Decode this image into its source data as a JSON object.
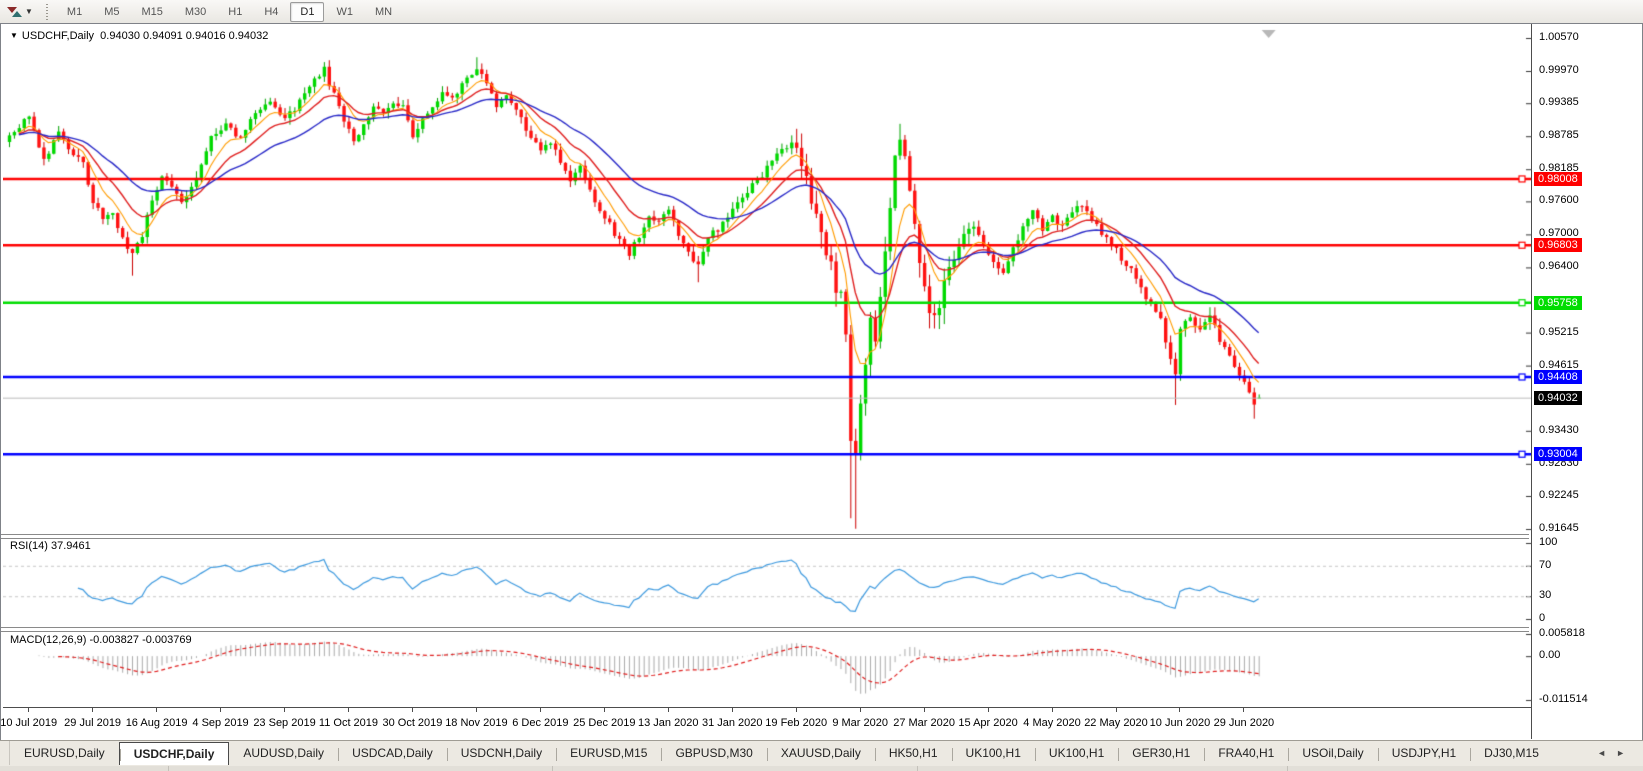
{
  "toolbar": {
    "timeframes": [
      "M1",
      "M5",
      "M15",
      "M30",
      "H1",
      "H4",
      "D1",
      "W1",
      "MN"
    ],
    "active_timeframe": "D1"
  },
  "chart_data": [
    {
      "type": "candlestick",
      "symbol": "USDCHF",
      "timeframe": "Daily",
      "title_symbol": "USDCHF,Daily",
      "title_ohlc": "0.94030 0.94091 0.94016 0.94032",
      "quote": {
        "open": 0.9403,
        "high": 0.94091,
        "low": 0.94016,
        "close": 0.94032
      },
      "collapse_arrow": "▼",
      "num_candles": 255,
      "x_labels": [
        "10 Jul 2019",
        "29 Jul 2019",
        "16 Aug 2019",
        "4 Sep 2019",
        "23 Sep 2019",
        "11 Oct 2019",
        "30 Oct 2019",
        "18 Nov 2019",
        "6 Dec 2019",
        "25 Dec 2019",
        "13 Jan 2020",
        "31 Jan 2020",
        "19 Feb 2020",
        "9 Mar 2020",
        "27 Mar 2020",
        "15 Apr 2020",
        "4 May 2020",
        "22 May 2020",
        "10 Jun 2020",
        "29 Jun 2020"
      ],
      "x_label_first_index": 4,
      "x_label_step": 13,
      "y_range": [
        0.91645,
        1.0057
      ],
      "y_ticks": [
        {
          "label": "1.00570",
          "value": 1.0057
        },
        {
          "label": "0.99970",
          "value": 0.9997
        },
        {
          "label": "0.99385",
          "value": 0.99385
        },
        {
          "label": "0.98785",
          "value": 0.98785
        },
        {
          "label": "0.98185",
          "value": 0.98185
        },
        {
          "label": "0.97600",
          "value": 0.976
        },
        {
          "label": "0.97000",
          "value": 0.97
        },
        {
          "label": "0.96400",
          "value": 0.964
        },
        {
          "label": "0.95215",
          "value": 0.95215
        },
        {
          "label": "0.94615",
          "value": 0.94615
        },
        {
          "label": "0.93430",
          "value": 0.9343
        },
        {
          "label": "0.92830",
          "value": 0.9283
        },
        {
          "label": "0.92245",
          "value": 0.92245
        },
        {
          "label": "0.91645",
          "value": 0.91645
        }
      ],
      "horizontal_lines": [
        {
          "label": "0.98008",
          "price": 0.98008,
          "color": "#FF0000"
        },
        {
          "label": "0.96803",
          "price": 0.96803,
          "color": "#FF0000"
        },
        {
          "label": "0.95758",
          "price": 0.95758,
          "color": "#00DD00"
        },
        {
          "label": "0.94408",
          "price": 0.94408,
          "color": "#0000FF"
        },
        {
          "label": "0.93004",
          "price": 0.93004,
          "color": "#0000FF"
        }
      ],
      "current_price": {
        "label": "0.94032",
        "value": 0.94032,
        "line_color": "#BDBDBD",
        "tag_bg": "#000000"
      },
      "moving_averages": [
        {
          "name": "fast",
          "color": "#FF9C00",
          "period": 7
        },
        {
          "name": "medium",
          "color": "#E02020",
          "period": 14
        },
        {
          "name": "slow",
          "color": "#2929C8",
          "period": 30
        }
      ],
      "colors": {
        "up": "#00D900",
        "up_stroke": "#00A300",
        "down": "#FF1111",
        "down_stroke": "#CC0000",
        "background": "#FFFFFF"
      },
      "close_anchors": [
        [
          0,
          0.988
        ],
        [
          4,
          0.9918
        ],
        [
          7,
          0.9838
        ],
        [
          10,
          0.988
        ],
        [
          13,
          0.9842
        ],
        [
          15,
          0.983
        ],
        [
          17,
          0.9762
        ],
        [
          19,
          0.9722
        ],
        [
          21,
          0.9738
        ],
        [
          23,
          0.9694
        ],
        [
          25,
          0.966
        ],
        [
          27,
          0.97
        ],
        [
          29,
          0.9762
        ],
        [
          31,
          0.9812
        ],
        [
          33,
          0.9782
        ],
        [
          35,
          0.9756
        ],
        [
          38,
          0.98
        ],
        [
          41,
          0.9872
        ],
        [
          44,
          0.9906
        ],
        [
          47,
          0.9872
        ],
        [
          50,
          0.9922
        ],
        [
          53,
          0.9948
        ],
        [
          56,
          0.9906
        ],
        [
          59,
          0.994
        ],
        [
          62,
          0.9986
        ],
        [
          64,
          0.9998
        ],
        [
          66,
          0.9952
        ],
        [
          68,
          0.9906
        ],
        [
          70,
          0.9872
        ],
        [
          72,
          0.99
        ],
        [
          74,
          0.9936
        ],
        [
          76,
          0.9918
        ],
        [
          78,
          0.9942
        ],
        [
          80,
          0.9932
        ],
        [
          82,
          0.9872
        ],
        [
          84,
          0.9906
        ],
        [
          86,
          0.9936
        ],
        [
          88,
          0.9958
        ],
        [
          90,
          0.9942
        ],
        [
          93,
          0.9986
        ],
        [
          95,
          1.0006
        ],
        [
          97,
          0.9968
        ],
        [
          99,
          0.9936
        ],
        [
          101,
          0.9956
        ],
        [
          103,
          0.9922
        ],
        [
          106,
          0.9878
        ],
        [
          108,
          0.9856
        ],
        [
          110,
          0.9872
        ],
        [
          112,
          0.9832
        ],
        [
          114,
          0.98
        ],
        [
          116,
          0.9822
        ],
        [
          118,
          0.978
        ],
        [
          120,
          0.9744
        ],
        [
          122,
          0.9716
        ],
        [
          124,
          0.9686
        ],
        [
          126,
          0.966
        ],
        [
          128,
          0.97
        ],
        [
          130,
          0.9732
        ],
        [
          132,
          0.9718
        ],
        [
          134,
          0.9742
        ],
        [
          136,
          0.97
        ],
        [
          138,
          0.9666
        ],
        [
          140,
          0.9648
        ],
        [
          142,
          0.969
        ],
        [
          145,
          0.9722
        ],
        [
          148,
          0.9756
        ],
        [
          151,
          0.979
        ],
        [
          154,
          0.982
        ],
        [
          157,
          0.9852
        ],
        [
          159,
          0.986
        ],
        [
          161,
          0.982
        ],
        [
          163,
          0.9772
        ],
        [
          165,
          0.97
        ],
        [
          167,
          0.9642
        ],
        [
          169,
          0.958
        ],
        [
          170,
          0.952
        ],
        [
          171,
          0.933
        ],
        [
          172,
          0.93
        ],
        [
          173,
          0.939
        ],
        [
          174,
          0.948
        ],
        [
          175,
          0.9552
        ],
        [
          176,
          0.9502
        ],
        [
          177,
          0.9602
        ],
        [
          178,
          0.9682
        ],
        [
          179,
          0.9762
        ],
        [
          180,
          0.9852
        ],
        [
          181,
          0.988
        ],
        [
          182,
          0.984
        ],
        [
          183,
          0.9782
        ],
        [
          184,
          0.9702
        ],
        [
          185,
          0.9642
        ],
        [
          186,
          0.9602
        ],
        [
          187,
          0.9562
        ],
        [
          188,
          0.9546
        ],
        [
          190,
          0.9602
        ],
        [
          192,
          0.9652
        ],
        [
          194,
          0.9692
        ],
        [
          196,
          0.9722
        ],
        [
          198,
          0.9686
        ],
        [
          200,
          0.9652
        ],
        [
          202,
          0.9626
        ],
        [
          204,
          0.9672
        ],
        [
          206,
          0.9712
        ],
        [
          208,
          0.9746
        ],
        [
          210,
          0.9706
        ],
        [
          212,
          0.9732
        ],
        [
          214,
          0.9712
        ],
        [
          216,
          0.9736
        ],
        [
          218,
          0.9756
        ],
        [
          220,
          0.9726
        ],
        [
          222,
          0.9706
        ],
        [
          224,
          0.9686
        ],
        [
          226,
          0.9656
        ],
        [
          228,
          0.9632
        ],
        [
          230,
          0.9602
        ],
        [
          232,
          0.9576
        ],
        [
          234,
          0.954
        ],
        [
          236,
          0.948
        ],
        [
          237,
          0.944
        ],
        [
          238,
          0.952
        ],
        [
          240,
          0.9556
        ],
        [
          242,
          0.9522
        ],
        [
          244,
          0.9546
        ],
        [
          246,
          0.9512
        ],
        [
          248,
          0.9472
        ],
        [
          250,
          0.9442
        ],
        [
          252,
          0.9408
        ],
        [
          253,
          0.9386
        ],
        [
          254,
          0.94032
        ]
      ],
      "wick_overrides": {
        "25": {
          "low": 0.9625
        },
        "95": {
          "high": 1.0022
        },
        "140": {
          "low": 0.9613
        },
        "159": {
          "high": 0.988
        },
        "171": {
          "low": 0.9184
        },
        "172": {
          "low": 0.9165
        },
        "181": {
          "high": 0.9901
        },
        "237": {
          "low": 0.939
        },
        "253": {
          "low": 0.9365
        }
      },
      "shift_marker_color": "#B8B8B8"
    },
    {
      "type": "line",
      "indicator": "RSI",
      "label": "RSI(14) 37.9461",
      "period": 14,
      "current_value": 37.9461,
      "y_range": [
        0,
        100
      ],
      "y_ticks": [
        {
          "label": "100",
          "value": 100
        },
        {
          "label": "70",
          "value": 70
        },
        {
          "label": "30",
          "value": 30
        },
        {
          "label": "0",
          "value": 0
        }
      ],
      "levels": [
        70,
        30
      ],
      "color": "#3E9ADF",
      "level_color": "#C8C8C8"
    },
    {
      "type": "macd_histogram",
      "indicator": "MACD",
      "label": "MACD(12,26,9) -0.003827 -0.003769",
      "params": [
        12,
        26,
        9
      ],
      "macd_value": -0.003827,
      "signal_value": -0.003769,
      "y_range": [
        -0.011514,
        0.005818
      ],
      "y_ticks": [
        {
          "label": "0.005818",
          "value": 0.005818
        },
        {
          "label": "0.00",
          "value": 0.0
        },
        {
          "label": "-0.011514",
          "value": -0.011514
        }
      ],
      "histogram_color": "#ABABAB",
      "signal_color": "#E02020"
    }
  ],
  "tabs": {
    "items": [
      "EURUSD,Daily",
      "USDCHF,Daily",
      "AUDUSD,Daily",
      "USDCAD,Daily",
      "USDCNH,Daily",
      "EURUSD,M15",
      "GBPUSD,M30",
      "XAUUSD,Daily",
      "HK50,H1",
      "UK100,H1",
      "UK100,H1",
      "GER30,H1",
      "FRA40,H1",
      "USOil,Daily",
      "USDJPY,H1",
      "DJ30,M15"
    ],
    "active_index": 1,
    "nav_left": "◄",
    "nav_right": "►"
  }
}
